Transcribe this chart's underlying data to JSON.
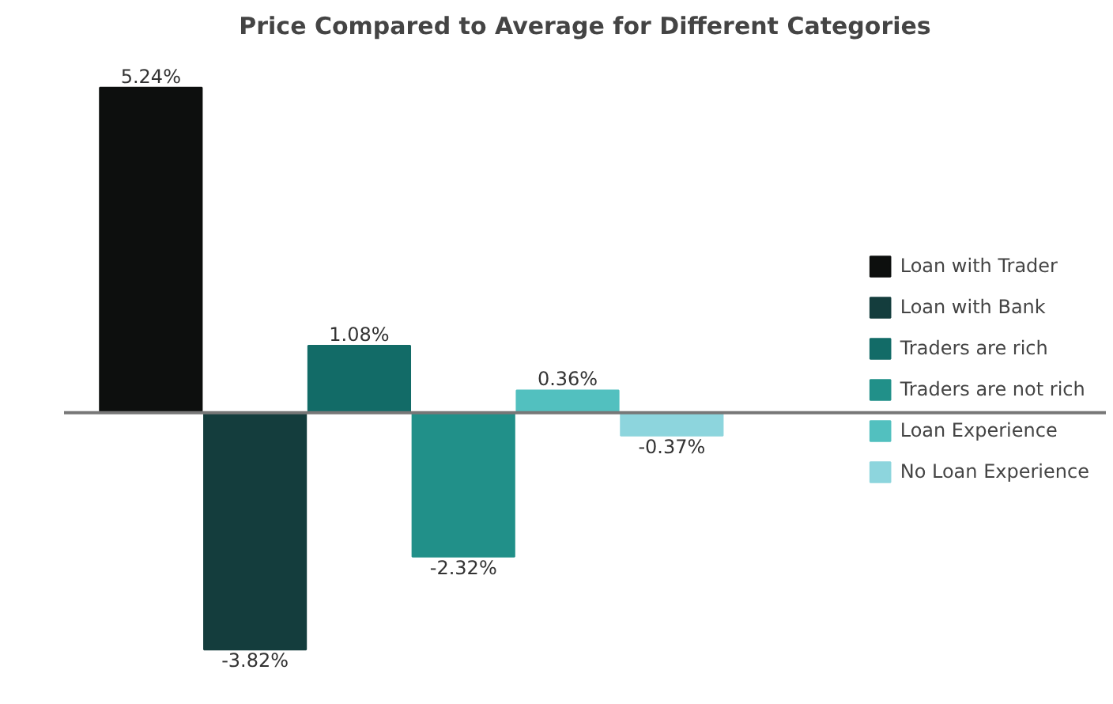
{
  "chart_data": {
    "type": "bar",
    "title": "Price Compared to Average for Different Categories",
    "categories": [
      null
    ],
    "series": [
      {
        "name": "Loan with Trader",
        "color": "#0d0f0e",
        "values": [
          5.24
        ],
        "value_labels": [
          "5.24%"
        ]
      },
      {
        "name": "Loan with Bank",
        "color": "#143d3d",
        "values": [
          -3.82
        ],
        "value_labels": [
          "-3.82%"
        ]
      },
      {
        "name": "Traders are rich",
        "color": "#126b67",
        "values": [
          1.08
        ],
        "value_labels": [
          "1.08%"
        ]
      },
      {
        "name": "Traders are not rich",
        "color": "#219089",
        "values": [
          -2.32
        ],
        "value_labels": [
          "-2.32%"
        ]
      },
      {
        "name": "Loan Experience",
        "color": "#52c0bf",
        "values": [
          0.36
        ],
        "value_labels": [
          "0.36%"
        ]
      },
      {
        "name": "No Loan Experience",
        "color": "#8dd5dd",
        "values": [
          -0.37
        ],
        "value_labels": [
          "-0.37%"
        ]
      }
    ],
    "legend": "right",
    "grid": false
  }
}
